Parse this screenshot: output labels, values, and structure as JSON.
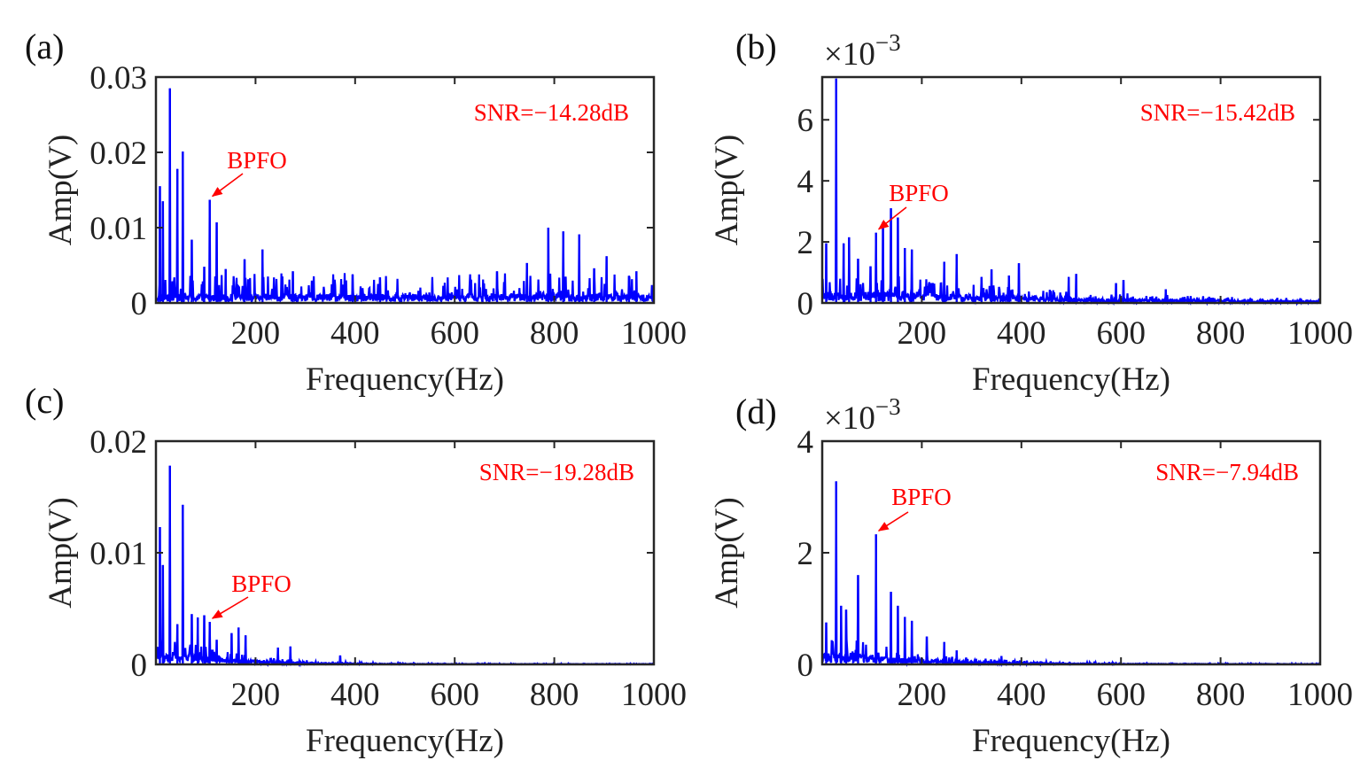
{
  "style": {
    "line_color": "#0000ff",
    "annotation_color": "#ff0000",
    "axis_color": "#262626"
  },
  "chart_data": [
    {
      "type": "line",
      "panel_label": "(a)",
      "xlabel": "Frequency(Hz)",
      "ylabel": "Amp(V)",
      "xlim": [
        0,
        1000
      ],
      "ylim": [
        0,
        0.03
      ],
      "x_ticks": [
        "200",
        "400",
        "600",
        "800",
        "1000"
      ],
      "y_ticks": [
        "0",
        "0.01",
        "0.02",
        "0.03"
      ],
      "y_exponent": "",
      "snr_text": "SNR=−14.28dB",
      "bpfo_text": "BPFO",
      "bpfo_point": {
        "x": 108,
        "y": 0.0137
      },
      "noise_floor": 0.0012,
      "noise_max": 0.004,
      "noise_decay": 0,
      "peaks": [
        [
          8,
          0.0155
        ],
        [
          14,
          0.0135
        ],
        [
          28,
          0.0285
        ],
        [
          43,
          0.0178
        ],
        [
          54,
          0.0201
        ],
        [
          72,
          0.0084
        ],
        [
          97,
          0.0048
        ],
        [
          108,
          0.0137
        ],
        [
          122,
          0.0107
        ],
        [
          140,
          0.0045
        ],
        [
          178,
          0.0058
        ],
        [
          214,
          0.0071
        ],
        [
          275,
          0.0042
        ],
        [
          395,
          0.0038
        ],
        [
          450,
          0.0034
        ],
        [
          685,
          0.0042
        ],
        [
          745,
          0.0053
        ],
        [
          788,
          0.01
        ],
        [
          818,
          0.0095
        ],
        [
          850,
          0.0091
        ],
        [
          880,
          0.0046
        ],
        [
          905,
          0.0062
        ],
        [
          950,
          0.0036
        ],
        [
          965,
          0.0042
        ]
      ]
    },
    {
      "type": "line",
      "panel_label": "(b)",
      "xlabel": "Frequency(Hz)",
      "ylabel": "Amp(V)",
      "xlim": [
        0,
        1000
      ],
      "ylim": [
        0,
        7.4
      ],
      "x_ticks": [
        "200",
        "400",
        "600",
        "800",
        "1000"
      ],
      "y_ticks": [
        "0",
        "2",
        "4",
        "6"
      ],
      "y_exponent": "×10",
      "y_exponent_power": "−3",
      "snr_text": "SNR=−15.42dB",
      "bpfo_text": "BPFO",
      "bpfo_point": {
        "x": 108,
        "y": 2.3
      },
      "noise_floor": 0.35,
      "noise_max": 0.85,
      "noise_decay": 420,
      "peaks": [
        [
          8,
          1.95
        ],
        [
          28,
          7.35
        ],
        [
          43,
          1.95
        ],
        [
          54,
          2.15
        ],
        [
          72,
          1.45
        ],
        [
          97,
          1.2
        ],
        [
          108,
          2.3
        ],
        [
          122,
          2.65
        ],
        [
          138,
          3.1
        ],
        [
          152,
          2.8
        ],
        [
          166,
          1.8
        ],
        [
          180,
          1.75
        ],
        [
          245,
          1.35
        ],
        [
          270,
          1.6
        ],
        [
          320,
          0.85
        ],
        [
          340,
          1.1
        ],
        [
          375,
          0.9
        ],
        [
          395,
          1.3
        ],
        [
          495,
          0.85
        ],
        [
          510,
          0.95
        ],
        [
          590,
          0.65
        ],
        [
          605,
          0.75
        ],
        [
          690,
          0.45
        ]
      ]
    },
    {
      "type": "line",
      "panel_label": "(c)",
      "xlabel": "Frequency(Hz)",
      "ylabel": "Amp(V)",
      "xlim": [
        0,
        1000
      ],
      "ylim": [
        0,
        0.02
      ],
      "x_ticks": [
        "200",
        "400",
        "600",
        "800",
        "1000"
      ],
      "y_ticks": [
        "0",
        "0.01",
        "0.02"
      ],
      "y_exponent": "",
      "snr_text": "SNR=−19.28dB",
      "bpfo_text": "BPFO",
      "bpfo_point": {
        "x": 108,
        "y": 0.0038
      },
      "noise_floor": 0.0011,
      "noise_max": 0.0024,
      "noise_decay": 120,
      "peaks": [
        [
          8,
          0.0123
        ],
        [
          14,
          0.0089
        ],
        [
          28,
          0.0178
        ],
        [
          43,
          0.0036
        ],
        [
          54,
          0.0143
        ],
        [
          72,
          0.0045
        ],
        [
          84,
          0.0042
        ],
        [
          97,
          0.0044
        ],
        [
          108,
          0.0038
        ],
        [
          122,
          0.0022
        ],
        [
          152,
          0.0028
        ],
        [
          166,
          0.0033
        ],
        [
          180,
          0.0026
        ],
        [
          245,
          0.0015
        ],
        [
          270,
          0.0016
        ],
        [
          370,
          0.0008
        ]
      ]
    },
    {
      "type": "line",
      "panel_label": "(d)",
      "xlabel": "Frequency(Hz)",
      "ylabel": "Amp(V)",
      "xlim": [
        0,
        1000
      ],
      "ylim": [
        0,
        4
      ],
      "x_ticks": [
        "200",
        "400",
        "600",
        "800",
        "1000"
      ],
      "y_ticks": [
        "0",
        "2",
        "4"
      ],
      "y_exponent": "×10",
      "y_exponent_power": "−3",
      "snr_text": "SNR=−7.94dB",
      "bpfo_text": "BPFO",
      "bpfo_point": {
        "x": 108,
        "y": 2.33
      },
      "noise_floor": 0.2,
      "noise_max": 0.45,
      "noise_decay": 160,
      "peaks": [
        [
          8,
          0.75
        ],
        [
          28,
          3.28
        ],
        [
          38,
          1.05
        ],
        [
          48,
          0.98
        ],
        [
          72,
          1.6
        ],
        [
          108,
          2.33
        ],
        [
          138,
          1.3
        ],
        [
          152,
          1.05
        ],
        [
          166,
          0.85
        ],
        [
          180,
          0.78
        ],
        [
          210,
          0.5
        ],
        [
          245,
          0.4
        ],
        [
          270,
          0.25
        ],
        [
          360,
          0.15
        ]
      ]
    }
  ]
}
